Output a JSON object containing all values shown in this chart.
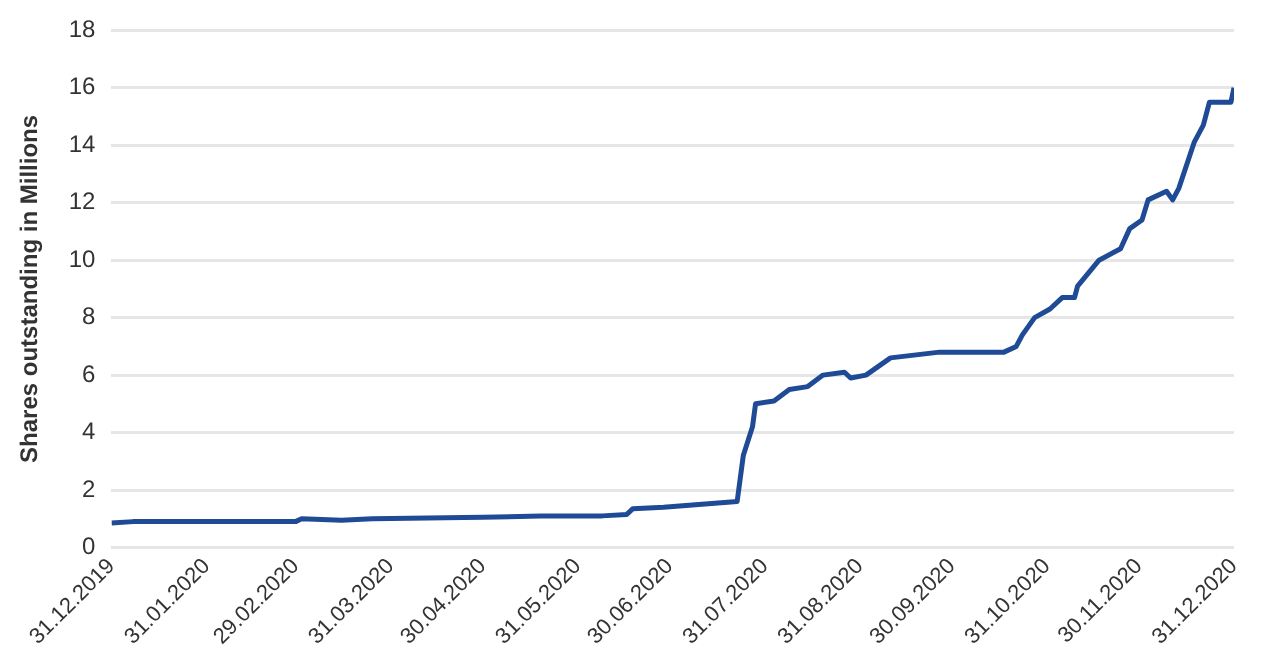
{
  "chart_data": {
    "type": "line",
    "ylabel": "Shares outstanding in Millions",
    "x": [
      "2019-12-31",
      "2020-01-07",
      "2020-02-29",
      "2020-03-02",
      "2020-03-15",
      "2020-03-25",
      "2020-04-30",
      "2020-05-19",
      "2020-06-08",
      "2020-06-16",
      "2020-06-18",
      "2020-06-28",
      "2020-07-22",
      "2020-07-24",
      "2020-07-27",
      "2020-07-28",
      "2020-08-03",
      "2020-08-08",
      "2020-08-14",
      "2020-08-19",
      "2020-08-26",
      "2020-08-28",
      "2020-09-02",
      "2020-09-10",
      "2020-09-26",
      "2020-10-17",
      "2020-10-21",
      "2020-10-23",
      "2020-10-27",
      "2020-11-01",
      "2020-11-05",
      "2020-11-09",
      "2020-11-10",
      "2020-11-17",
      "2020-11-24",
      "2020-11-27",
      "2020-12-01",
      "2020-12-03",
      "2020-12-09",
      "2020-12-11",
      "2020-12-13",
      "2020-12-18",
      "2020-12-21",
      "2020-12-23",
      "2020-12-30",
      "2020-12-31"
    ],
    "series": [
      {
        "color": "#1f4a96",
        "values": [
          0.85,
          0.9,
          0.9,
          1.0,
          0.95,
          1.0,
          1.05,
          1.1,
          1.1,
          1.15,
          1.35,
          1.4,
          1.6,
          3.2,
          4.2,
          5.0,
          5.1,
          5.5,
          5.6,
          6.0,
          6.1,
          5.9,
          6.0,
          6.6,
          6.8,
          6.8,
          7.0,
          7.4,
          8.0,
          8.3,
          8.7,
          8.7,
          9.1,
          10.0,
          10.4,
          11.1,
          11.4,
          12.1,
          12.4,
          12.1,
          12.5,
          14.1,
          14.7,
          15.5,
          15.5,
          16.0
        ]
      }
    ],
    "xlim": [
      "2019-12-31",
      "2020-12-31"
    ],
    "xticks": [
      {
        "value": "2019-12-31",
        "label": "31.12.2019"
      },
      {
        "value": "2020-01-31",
        "label": "31.01.2020"
      },
      {
        "value": "2020-02-29",
        "label": "29.02.2020"
      },
      {
        "value": "2020-03-31",
        "label": "31.03.2020"
      },
      {
        "value": "2020-04-30",
        "label": "30.04.2020"
      },
      {
        "value": "2020-05-31",
        "label": "31.05.2020"
      },
      {
        "value": "2020-06-30",
        "label": "30.06.2020"
      },
      {
        "value": "2020-07-31",
        "label": "31.07.2020"
      },
      {
        "value": "2020-08-31",
        "label": "31.08.2020"
      },
      {
        "value": "2020-09-30",
        "label": "30.09.2020"
      },
      {
        "value": "2020-10-31",
        "label": "31.10.2020"
      },
      {
        "value": "2020-11-30",
        "label": "30.11.2020"
      },
      {
        "value": "2020-12-31",
        "label": "31.12.2020"
      }
    ],
    "ylim": [
      0,
      18
    ],
    "yticks": [
      0,
      2,
      4,
      6,
      8,
      10,
      12,
      14,
      16,
      18
    ],
    "grid": "y",
    "marker": "none",
    "line_style": "solid"
  }
}
